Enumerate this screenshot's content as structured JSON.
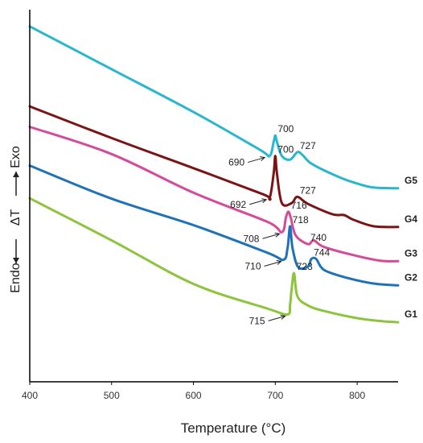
{
  "chart_data": {
    "type": "line",
    "title": "",
    "xlabel": "Temperature (°C)",
    "ylabel": {
      "left": "Endo",
      "middle": "ΔT",
      "right": "Exo"
    },
    "xlim": [
      400,
      850
    ],
    "xticks": [
      400,
      500,
      600,
      700,
      800
    ],
    "ylim": [
      0,
      1
    ],
    "grid": false,
    "legend": "none",
    "series": [
      {
        "name": "G5",
        "color": "#29b6cf",
        "points": [
          [
            400,
            0.955
          ],
          [
            500,
            0.84
          ],
          [
            600,
            0.725
          ],
          [
            680,
            0.625
          ],
          [
            693,
            0.607
          ],
          [
            698,
            0.645
          ],
          [
            700,
            0.662
          ],
          [
            702,
            0.645
          ],
          [
            708,
            0.607
          ],
          [
            718,
            0.597
          ],
          [
            727,
            0.617
          ],
          [
            733,
            0.61
          ],
          [
            745,
            0.585
          ],
          [
            780,
            0.548
          ],
          [
            800,
            0.533
          ],
          [
            820,
            0.522
          ],
          [
            850,
            0.52
          ]
        ]
      },
      {
        "name": "G4",
        "color": "#7b1414",
        "points": [
          [
            400,
            0.74
          ],
          [
            500,
            0.655
          ],
          [
            600,
            0.574
          ],
          [
            685,
            0.504
          ],
          [
            693,
            0.494
          ],
          [
            698,
            0.56
          ],
          [
            700,
            0.607
          ],
          [
            702,
            0.56
          ],
          [
            708,
            0.48
          ],
          [
            720,
            0.48
          ],
          [
            727,
            0.497
          ],
          [
            740,
            0.478
          ],
          [
            770,
            0.45
          ],
          [
            784,
            0.448
          ],
          [
            795,
            0.436
          ],
          [
            820,
            0.418
          ],
          [
            850,
            0.416
          ]
        ]
      },
      {
        "name": "G3",
        "color": "#d64a9a",
        "points": [
          [
            400,
            0.685
          ],
          [
            500,
            0.612
          ],
          [
            600,
            0.508
          ],
          [
            690,
            0.43
          ],
          [
            708,
            0.402
          ],
          [
            713,
            0.442
          ],
          [
            716,
            0.457
          ],
          [
            719,
            0.44
          ],
          [
            725,
            0.393
          ],
          [
            740,
            0.37
          ],
          [
            747,
            0.38
          ],
          [
            760,
            0.362
          ],
          [
            800,
            0.338
          ],
          [
            830,
            0.325
          ],
          [
            850,
            0.324
          ]
        ]
      },
      {
        "name": "G2",
        "color": "#1f72b8",
        "points": [
          [
            400,
            0.581
          ],
          [
            500,
            0.492
          ],
          [
            600,
            0.421
          ],
          [
            690,
            0.347
          ],
          [
            710,
            0.328
          ],
          [
            715,
            0.36
          ],
          [
            718,
            0.418
          ],
          [
            721,
            0.36
          ],
          [
            728,
            0.308
          ],
          [
            740,
            0.31
          ],
          [
            744,
            0.33
          ],
          [
            750,
            0.33
          ],
          [
            760,
            0.3
          ],
          [
            790,
            0.278
          ],
          [
            820,
            0.264
          ],
          [
            850,
            0.259
          ]
        ]
      },
      {
        "name": "G1",
        "color": "#8cc43c",
        "points": [
          [
            400,
            0.493
          ],
          [
            500,
            0.38
          ],
          [
            600,
            0.263
          ],
          [
            690,
            0.197
          ],
          [
            715,
            0.181
          ],
          [
            718,
            0.207
          ],
          [
            720,
            0.25
          ],
          [
            723,
            0.292
          ],
          [
            727,
            0.23
          ],
          [
            740,
            0.205
          ],
          [
            760,
            0.19
          ],
          [
            800,
            0.171
          ],
          [
            830,
            0.163
          ],
          [
            850,
            0.16
          ]
        ]
      }
    ],
    "annotations": [
      {
        "text": "700",
        "x": 700,
        "y": 0.662,
        "arrow": false
      },
      {
        "text": "727",
        "x": 727,
        "y": 0.617,
        "arrow": false
      },
      {
        "text": "690",
        "x": 690,
        "y": 0.607,
        "arrow": true
      },
      {
        "text": "700",
        "x": 700,
        "y": 0.607,
        "arrow": false
      },
      {
        "text": "727",
        "x": 727,
        "y": 0.497,
        "arrow": false
      },
      {
        "text": "692",
        "x": 692,
        "y": 0.494,
        "arrow": true
      },
      {
        "text": "716",
        "x": 716,
        "y": 0.457,
        "arrow": false
      },
      {
        "text": "740",
        "x": 740,
        "y": 0.37,
        "arrow": false
      },
      {
        "text": "708",
        "x": 708,
        "y": 0.402,
        "arrow": true
      },
      {
        "text": "718",
        "x": 718,
        "y": 0.418,
        "arrow": false
      },
      {
        "text": "744",
        "x": 744,
        "y": 0.33,
        "arrow": false
      },
      {
        "text": "710",
        "x": 710,
        "y": 0.328,
        "arrow": true
      },
      {
        "text": "723",
        "x": 723,
        "y": 0.292,
        "arrow": false
      },
      {
        "text": "715",
        "x": 715,
        "y": 0.181,
        "arrow": true
      }
    ]
  }
}
